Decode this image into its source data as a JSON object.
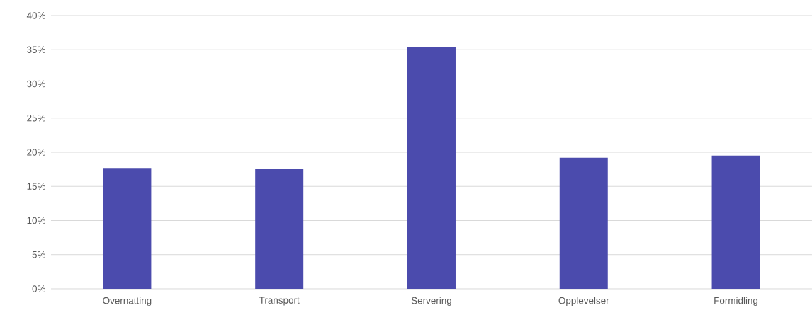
{
  "chart_data": {
    "type": "bar",
    "categories": [
      "Overnatting",
      "Transport",
      "Servering",
      "Opplevelser",
      "Formidling"
    ],
    "values": [
      17.6,
      17.5,
      35.4,
      19.2,
      19.5
    ],
    "color": "#4b4bad",
    "ylim": [
      0,
      40
    ],
    "yticks": [
      {
        "value": 0,
        "label": "0%"
      },
      {
        "value": 5,
        "label": "5%"
      },
      {
        "value": 10,
        "label": "10%"
      },
      {
        "value": 15,
        "label": "15%"
      },
      {
        "value": 20,
        "label": "20%"
      },
      {
        "value": 25,
        "label": "25%"
      },
      {
        "value": 30,
        "label": "30%"
      },
      {
        "value": 35,
        "label": "35%"
      },
      {
        "value": 40,
        "label": "40%"
      }
    ],
    "grid": "y"
  }
}
